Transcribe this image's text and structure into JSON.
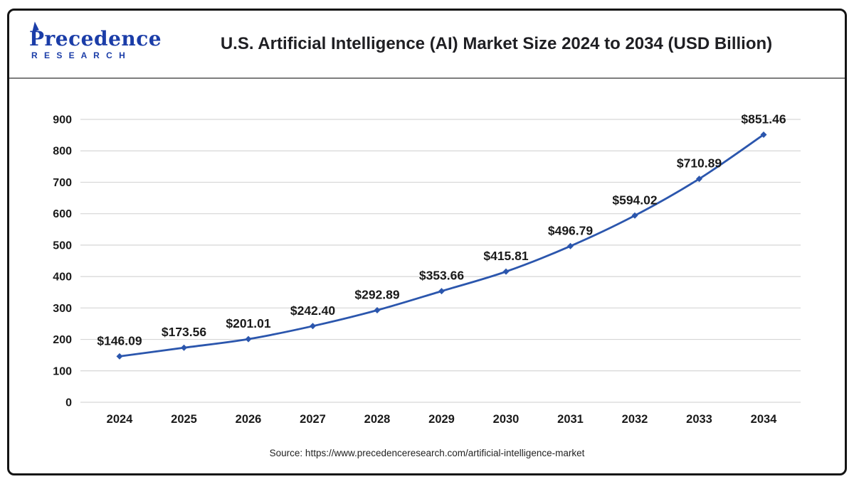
{
  "header": {
    "logo": {
      "line1": "Precedence",
      "line2": "R E S E A R C H"
    },
    "title": "U.S. Artificial Intelligence (AI) Market Size 2024 to 2034 (USD Billion)"
  },
  "chart_data": {
    "type": "line",
    "title": "U.S. Artificial Intelligence (AI) Market Size 2024 to 2034 (USD Billion)",
    "categories": [
      "2024",
      "2025",
      "2026",
      "2027",
      "2028",
      "2029",
      "2030",
      "2031",
      "2032",
      "2033",
      "2034"
    ],
    "values": [
      146.09,
      173.56,
      201.01,
      242.4,
      292.89,
      353.66,
      415.81,
      496.79,
      594.02,
      710.89,
      851.46
    ],
    "value_labels": [
      "$146.09",
      "$173.56",
      "$201.01",
      "$242.40",
      "$292.89",
      "$353.66",
      "$415.81",
      "$496.79",
      "$594.02",
      "$710.89",
      "$851.46"
    ],
    "xlabel": "",
    "ylabel": "",
    "ylim": [
      0,
      900
    ],
    "ytick_step": 100,
    "grid": true,
    "legend": "none",
    "unit": "USD Billion",
    "line_color": "#2b56ad",
    "marker": "diamond",
    "label_color": "#1a1a1a",
    "grid_color": "#d6d6d6",
    "tick_color": "#1a1a1a"
  },
  "footer": {
    "source": "Source: https://www.precedenceresearch.com/artificial-intelligence-market"
  },
  "colors": {
    "logo_blue": "#1b3da8",
    "accent_blue": "#2b56ad",
    "card_border": "#141414",
    "divider": "#7d7d7d"
  }
}
